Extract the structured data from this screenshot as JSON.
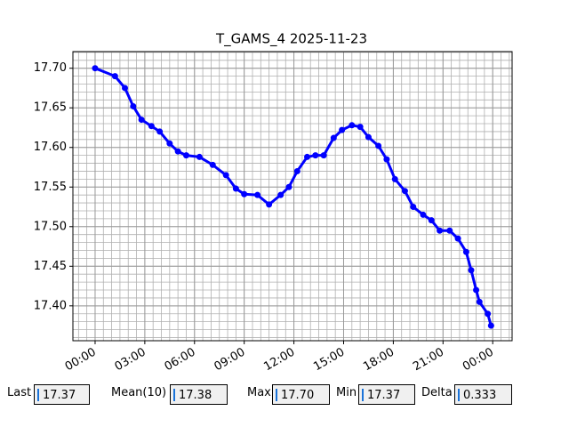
{
  "chart_data": {
    "type": "line",
    "title": "T_GAMS_4 2025-11-23",
    "x": [
      0,
      1.2,
      1.8,
      2.3,
      2.8,
      3.4,
      3.9,
      4.5,
      5,
      5.5,
      6.3,
      7.1,
      7.9,
      8.5,
      9,
      9.8,
      10.5,
      11.2,
      11.7,
      12.2,
      12.8,
      13.3,
      13.8,
      14.4,
      14.9,
      15.5,
      16,
      16.5,
      17.1,
      17.6,
      18.1,
      18.7,
      19.2,
      19.8,
      20.3,
      20.8,
      21.4,
      21.9,
      22.4,
      22.7,
      23,
      23.2,
      23.7,
      23.9
    ],
    "series": [
      {
        "color": "#0000ff",
        "values": [
          17.7,
          17.69,
          17.675,
          17.652,
          17.635,
          17.627,
          17.62,
          17.605,
          17.595,
          17.59,
          17.588,
          17.578,
          17.565,
          17.548,
          17.541,
          17.54,
          17.528,
          17.54,
          17.55,
          17.57,
          17.588,
          17.59,
          17.59,
          17.612,
          17.622,
          17.628,
          17.626,
          17.613,
          17.602,
          17.585,
          17.56,
          17.545,
          17.525,
          17.515,
          17.508,
          17.495,
          17.495,
          17.485,
          17.468,
          17.445,
          17.42,
          17.405,
          17.39,
          17.375
        ]
      }
    ],
    "xlim": [
      -1.34,
      25.17
    ],
    "xticks": [
      {
        "value": 0,
        "label": "00:00"
      },
      {
        "value": 3,
        "label": "03:00"
      },
      {
        "value": 6,
        "label": "06:00"
      },
      {
        "value": 9,
        "label": "09:00"
      },
      {
        "value": 12,
        "label": "12:00"
      },
      {
        "value": 15,
        "label": "15:00"
      },
      {
        "value": 18,
        "label": "18:00"
      },
      {
        "value": 21,
        "label": "21:00"
      },
      {
        "value": 24,
        "label": "00:00"
      }
    ],
    "ylim": [
      17.356,
      17.721
    ],
    "yticks": [
      {
        "value": 17.4,
        "label": "17.40"
      },
      {
        "value": 17.45,
        "label": "17.45"
      },
      {
        "value": 17.5,
        "label": "17.50"
      },
      {
        "value": 17.55,
        "label": "17.55"
      },
      {
        "value": 17.6,
        "label": "17.60"
      },
      {
        "value": 17.65,
        "label": "17.65"
      },
      {
        "value": 17.7,
        "label": "17.70"
      }
    ],
    "grid": true
  },
  "stats": [
    {
      "label": "Last",
      "value": "17.37"
    },
    {
      "label": "Mean(10)",
      "value": "17.38"
    },
    {
      "label": "Max",
      "value": "17.70"
    },
    {
      "label": "Min",
      "value": "17.37"
    },
    {
      "label": "Delta",
      "value": "0.333"
    }
  ]
}
